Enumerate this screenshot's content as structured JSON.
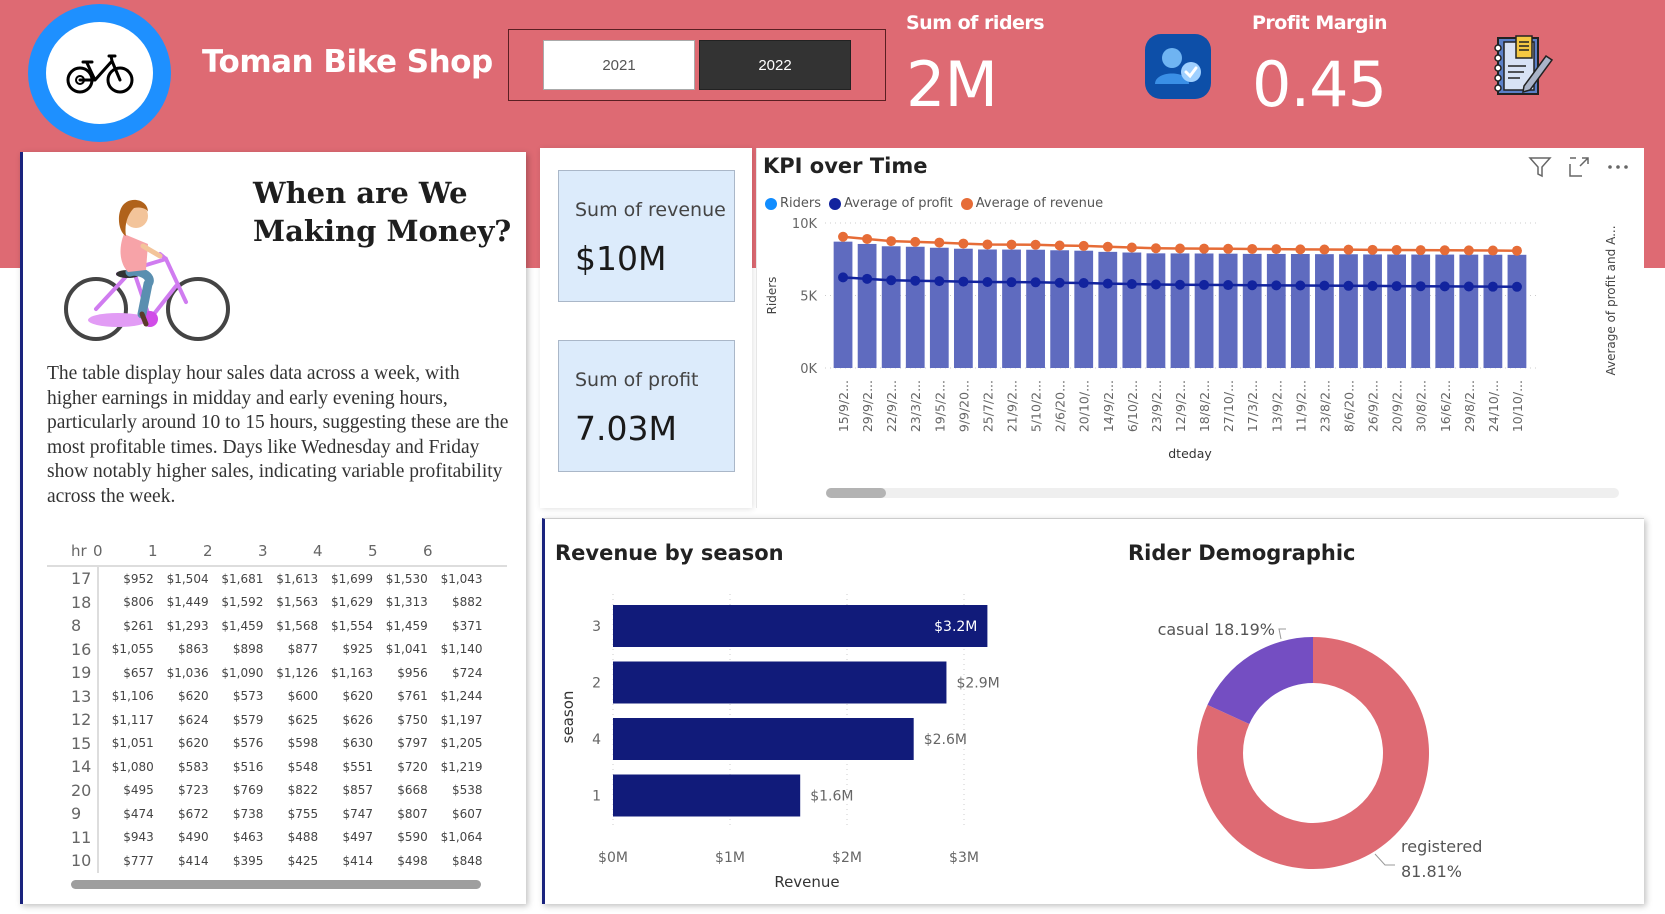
{
  "header": {
    "title": "Toman Bike Shop",
    "year_slicer": {
      "options": [
        {
          "label": "2021",
          "selected": false
        },
        {
          "label": "2022",
          "selected": true
        }
      ]
    },
    "kpis": [
      {
        "label": "Sum of riders",
        "value": "2M"
      },
      {
        "label": "Profit Margin",
        "value": "0.45"
      }
    ],
    "icons": [
      "bicycle-icon",
      "users-check-icon",
      "notebook-pen-icon"
    ]
  },
  "insight_card": {
    "heading_line1": "When are We",
    "heading_line2": "Making Money?",
    "description": "The table display hour sales data across a week, with higher earnings in midday and early evening hours, particularly around 10 to 15 hours, suggesting these are the most profitable times. Days like Wednesday and Friday show notably higher sales, indicating variable profitability across the week.",
    "matrix": {
      "row_header": "hr",
      "columns": [
        "0",
        "1",
        "2",
        "3",
        "4",
        "5",
        "6"
      ],
      "rows": [
        {
          "hr": "17",
          "values": [
            "$952",
            "$1,504",
            "$1,681",
            "$1,613",
            "$1,699",
            "$1,530",
            "$1,043"
          ]
        },
        {
          "hr": "18",
          "values": [
            "$806",
            "$1,449",
            "$1,592",
            "$1,563",
            "$1,629",
            "$1,313",
            "$882"
          ]
        },
        {
          "hr": "8",
          "values": [
            "$261",
            "$1,293",
            "$1,459",
            "$1,568",
            "$1,554",
            "$1,459",
            "$371"
          ]
        },
        {
          "hr": "16",
          "values": [
            "$1,055",
            "$863",
            "$898",
            "$877",
            "$925",
            "$1,041",
            "$1,140"
          ]
        },
        {
          "hr": "19",
          "values": [
            "$657",
            "$1,036",
            "$1,090",
            "$1,126",
            "$1,163",
            "$956",
            "$724"
          ]
        },
        {
          "hr": "13",
          "values": [
            "$1,106",
            "$620",
            "$573",
            "$600",
            "$620",
            "$761",
            "$1,244"
          ]
        },
        {
          "hr": "12",
          "values": [
            "$1,117",
            "$624",
            "$579",
            "$625",
            "$626",
            "$750",
            "$1,197"
          ]
        },
        {
          "hr": "15",
          "values": [
            "$1,051",
            "$620",
            "$576",
            "$598",
            "$630",
            "$797",
            "$1,205"
          ]
        },
        {
          "hr": "14",
          "values": [
            "$1,080",
            "$583",
            "$516",
            "$548",
            "$551",
            "$720",
            "$1,219"
          ]
        },
        {
          "hr": "20",
          "values": [
            "$495",
            "$723",
            "$769",
            "$822",
            "$857",
            "$668",
            "$538"
          ]
        },
        {
          "hr": "9",
          "values": [
            "$474",
            "$672",
            "$738",
            "$755",
            "$747",
            "$807",
            "$607"
          ]
        },
        {
          "hr": "11",
          "values": [
            "$943",
            "$490",
            "$463",
            "$488",
            "$497",
            "$590",
            "$1,064"
          ]
        },
        {
          "hr": "10",
          "values": [
            "$777",
            "$414",
            "$395",
            "$425",
            "$414",
            "$498",
            "$848"
          ]
        }
      ]
    }
  },
  "cards": {
    "revenue": {
      "label": "Sum of revenue",
      "value": "$10M"
    },
    "profit": {
      "label": "Sum of profit",
      "value": "7.03M"
    }
  },
  "colors": {
    "brand_band": "#DE6A73",
    "riders_bar": "#5F6BBF",
    "profit_line": "#12239E",
    "revenue_line": "#E66C37",
    "season_bar": "#111B7A",
    "donut_registered": "#DE6A73",
    "donut_casual": "#744EC2"
  },
  "chart_data": [
    {
      "type": "bar",
      "subtype": "combo-bar-line",
      "title": "KPI over Time",
      "legend": [
        "Riders",
        "Average of profit",
        "Average of revenue"
      ],
      "legend_position": "top-left",
      "xlabel": "dteday",
      "ylabel": "Riders",
      "y2label": "Average of profit and A...",
      "ylim": [
        0,
        10000
      ],
      "yticks": [
        "0K",
        "5K",
        "10K"
      ],
      "grid": true,
      "categories": [
        "15/9/2...",
        "29/9/2...",
        "22/9/2...",
        "23/3/2...",
        "19/5/2...",
        "9/9/20...",
        "25/7/2...",
        "21/9/2...",
        "5/10/2...",
        "2/6/20...",
        "20/10/...",
        "14/9/2...",
        "6/10/2...",
        "23/9/2...",
        "12/9/2...",
        "18/8/2...",
        "27/10/...",
        "17/3/2...",
        "13/9/2...",
        "11/9/2...",
        "23/8/2...",
        "8/6/20...",
        "26/9/2...",
        "20/9/2...",
        "30/8/2...",
        "16/6/2...",
        "29/8/2...",
        "24/10/...",
        "10/10/..."
      ],
      "series": [
        {
          "name": "Riders",
          "kind": "bar",
          "values": [
            8714,
            8555,
            8395,
            8362,
            8294,
            8227,
            8173,
            8167,
            8156,
            8120,
            8090,
            8010,
            7965,
            7907,
            7902,
            7898,
            7884,
            7870,
            7865,
            7861,
            7852,
            7846,
            7834,
            7829,
            7825,
            7823,
            7819,
            7812,
            7807
          ]
        },
        {
          "name": "Average of profit",
          "kind": "line",
          "values": [
            6250,
            6150,
            6050,
            6020,
            5990,
            5960,
            5930,
            5920,
            5910,
            5880,
            5860,
            5820,
            5790,
            5760,
            5740,
            5730,
            5720,
            5710,
            5700,
            5690,
            5680,
            5670,
            5660,
            5650,
            5640,
            5630,
            5620,
            5610,
            5600
          ]
        },
        {
          "name": "Average of revenue",
          "kind": "line",
          "values": [
            9050,
            8900,
            8750,
            8700,
            8650,
            8580,
            8520,
            8510,
            8500,
            8450,
            8420,
            8360,
            8310,
            8260,
            8240,
            8230,
            8220,
            8210,
            8200,
            8180,
            8170,
            8160,
            8150,
            8140,
            8130,
            8120,
            8110,
            8100,
            8090
          ]
        }
      ]
    },
    {
      "type": "bar",
      "orientation": "horizontal",
      "title": "Revenue by season",
      "xlabel": "Revenue",
      "ylabel": "season",
      "categories": [
        "3",
        "2",
        "4",
        "1"
      ],
      "values": [
        3.2,
        2.85,
        2.57,
        1.6
      ],
      "data_labels": [
        "$3.2M",
        "$2.9M",
        "$2.6M",
        "$1.6M"
      ],
      "xlim": [
        0,
        3.2
      ],
      "xticks": [
        "$0M",
        "$1M",
        "$2M",
        "$3M"
      ],
      "units": "millions USD",
      "grid": true
    },
    {
      "type": "pie",
      "subtype": "donut",
      "title": "Rider Demographic",
      "categories": [
        "registered",
        "casual"
      ],
      "values": [
        81.81,
        18.19
      ],
      "data_labels": [
        "registered 81.81%",
        "casual 18.19%"
      ]
    }
  ]
}
